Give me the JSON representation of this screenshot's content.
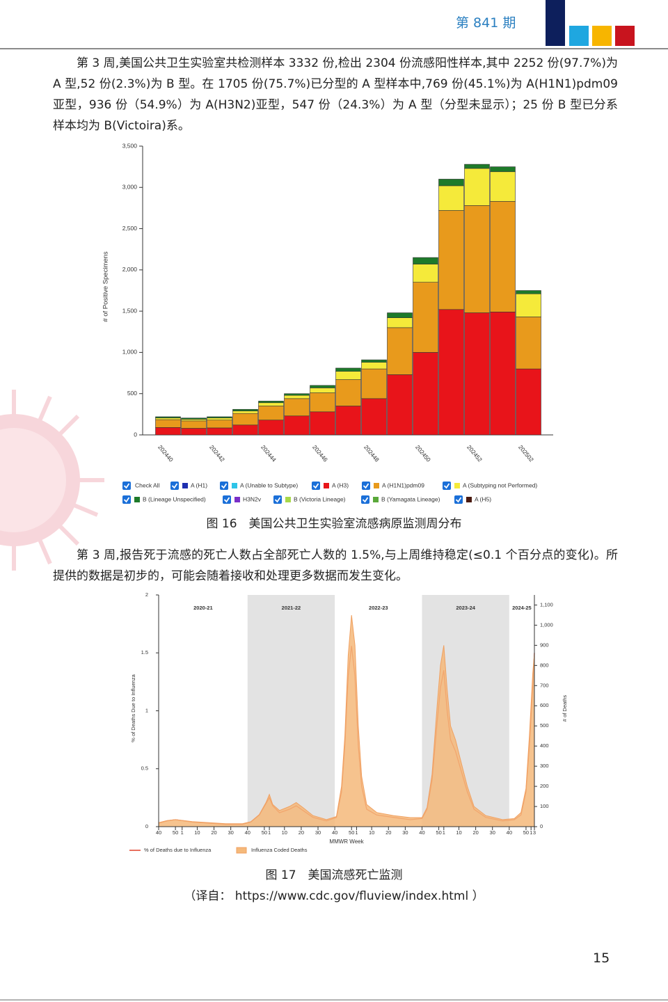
{
  "header": {
    "issue": "第 841 期"
  },
  "paragraphs": [
    "第 3 周,美国公共卫生实验室共检测样本 3332 份,检出 2304 份流感阳性样本,其中 2252 份(97.7%)为 A 型,52 份(2.3%)为 B 型。在 1705 份(75.7%)已分型的 A 型样本中,769 份(45.1%)为 A(H1N1)pdm09 亚型，936 份（54.9%）为 A(H3N2)亚型，547 份（24.3%）为 A 型（分型未显示）；25 份 B 型已分系样本均为 B(Victoira)系。",
    "第 3 周,报告死于流感的死亡人数占全部死亡人数的 1.5%,与上周维持稳定(≤0.1 个百分点的变化)。所提供的数据是初步的，可能会随着接收和处理更多数据而发生变化。"
  ],
  "captions": [
    "图 16　美国公共卫生实验室流感病原监测周分布",
    "图 17　美国流感死亡监测"
  ],
  "source": "（译自： https://www.cdc.gov/fluview/index.html ）",
  "page_number": "15",
  "chart_data": [
    {
      "type": "stacked_bar",
      "y_label": "# of Positive Specimens",
      "legend_check_all": "Check All",
      "categories": [
        "202440",
        null,
        "202442",
        null,
        "202444",
        null,
        "202446",
        null,
        "202448",
        null,
        "202450",
        null,
        "202452",
        null,
        "202502"
      ],
      "ylim": [
        0,
        3500
      ],
      "yticks": [
        0,
        500,
        {
          "value": 1000,
          "label": "1,000"
        },
        {
          "value": 1500,
          "label": "1,500"
        },
        {
          "value": 2000,
          "label": "2,000"
        },
        {
          "value": 2500,
          "label": "2,500"
        },
        {
          "value": 3000,
          "label": "3,000"
        },
        {
          "value": 3500,
          "label": "3,500"
        }
      ],
      "series": [
        {
          "name": "A (H1)",
          "color": "#1f2fb0",
          "values": [
            0,
            0,
            0,
            0,
            0,
            0,
            0,
            0,
            0,
            0,
            0,
            0,
            0,
            0,
            0
          ]
        },
        {
          "name": "A (Unable to Subtype)",
          "color": "#2ec4e8",
          "values": [
            0,
            0,
            0,
            0,
            0,
            0,
            0,
            0,
            0,
            0,
            0,
            0,
            0,
            0,
            0
          ]
        },
        {
          "name": "A (H3)",
          "color": "#e8141a",
          "values": [
            90,
            80,
            85,
            120,
            180,
            230,
            280,
            350,
            440,
            730,
            1000,
            1520,
            1480,
            1490,
            800
          ]
        },
        {
          "name": "A (H1N1)pdm09",
          "color": "#e89a1c",
          "values": [
            95,
            90,
            95,
            140,
            170,
            210,
            230,
            320,
            360,
            570,
            850,
            1200,
            1300,
            1340,
            630
          ]
        },
        {
          "name": "A (Subtyping not Performed)",
          "color": "#f5ea3a",
          "values": [
            20,
            20,
            25,
            30,
            40,
            40,
            60,
            100,
            80,
            120,
            220,
            300,
            450,
            360,
            280
          ]
        },
        {
          "name": "B (Lineage Unspecified)",
          "color": "#1e7a2a",
          "values": [
            15,
            15,
            15,
            20,
            20,
            20,
            30,
            40,
            30,
            60,
            80,
            80,
            50,
            60,
            40
          ]
        },
        {
          "name": "H3N2v",
          "color": "#7a2fc8",
          "values": [
            0,
            0,
            0,
            0,
            0,
            0,
            0,
            0,
            0,
            0,
            0,
            0,
            0,
            0,
            0
          ]
        },
        {
          "name": "B (Victoria Lineage)",
          "color": "#a8d84a",
          "values": [
            0,
            0,
            0,
            0,
            0,
            0,
            0,
            0,
            0,
            0,
            0,
            0,
            0,
            0,
            0
          ]
        },
        {
          "name": "B (Yamagata Lineage)",
          "color": "#5aa83a",
          "values": [
            0,
            0,
            0,
            0,
            0,
            0,
            0,
            0,
            0,
            0,
            0,
            0,
            0,
            0,
            0
          ]
        },
        {
          "name": "A (H5)",
          "color": "#4a1a10",
          "values": [
            0,
            0,
            0,
            0,
            0,
            0,
            0,
            0,
            0,
            0,
            0,
            0,
            0,
            0,
            0
          ]
        }
      ]
    },
    {
      "type": "dual_axis_area_line",
      "x_label": "MMWR Week",
      "y_label": "% of Deaths Due to Influenza",
      "y2_label": "# of Deaths",
      "x": [
        0,
        5,
        10,
        15,
        20,
        30,
        40,
        50,
        55,
        60,
        64,
        66,
        68,
        72,
        78,
        82,
        86,
        92,
        100,
        106,
        109,
        111,
        113,
        115,
        117,
        119,
        121,
        124,
        130,
        140,
        150,
        157,
        160,
        163,
        166,
        168,
        170,
        172,
        174,
        177,
        180,
        184,
        188,
        195,
        205,
        212,
        216,
        219,
        221,
        223,
        224
      ],
      "xlim": [
        0,
        224
      ],
      "xticks": [
        {
          "value": 0,
          "label": "40"
        },
        {
          "value": 10,
          "label": "50"
        },
        {
          "value": 14,
          "label": "1"
        },
        {
          "value": 23,
          "label": "10"
        },
        {
          "value": 33,
          "label": "20"
        },
        {
          "value": 43,
          "label": "30"
        },
        {
          "value": 53,
          "label": "40"
        },
        {
          "value": 63,
          "label": "50"
        },
        {
          "value": 66,
          "label": "1"
        },
        {
          "value": 75,
          "label": "10"
        },
        {
          "value": 85,
          "label": "20"
        },
        {
          "value": 95,
          "label": "30"
        },
        {
          "value": 105,
          "label": "40"
        },
        {
          "value": 115,
          "label": "50"
        },
        {
          "value": 118,
          "label": "1"
        },
        {
          "value": 127,
          "label": "10"
        },
        {
          "value": 137,
          "label": "20"
        },
        {
          "value": 147,
          "label": "30"
        },
        {
          "value": 157,
          "label": "40"
        },
        {
          "value": 167,
          "label": "50"
        },
        {
          "value": 170,
          "label": "1"
        },
        {
          "value": 179,
          "label": "10"
        },
        {
          "value": 189,
          "label": "20"
        },
        {
          "value": 199,
          "label": "30"
        },
        {
          "value": 209,
          "label": "40"
        },
        {
          "value": 219,
          "label": "50"
        },
        {
          "value": 222,
          "label": "1"
        },
        {
          "value": 224,
          "label": "3"
        }
      ],
      "ylim": [
        0,
        2
      ],
      "yticks": [
        0,
        0.5,
        1,
        1.5,
        2
      ],
      "y2lim": [
        0,
        1150
      ],
      "y2ticks": [
        0,
        100,
        200,
        300,
        400,
        500,
        600,
        700,
        800,
        900,
        {
          "value": 1000,
          "label": "1,000"
        },
        {
          "value": 1100,
          "label": "1,100"
        }
      ],
      "seasons": [
        {
          "label": "2020-21",
          "range": [
            0,
            53
          ],
          "shaded": false
        },
        {
          "label": "2021-22",
          "range": [
            53,
            105
          ],
          "shaded": true
        },
        {
          "label": "2022-23",
          "range": [
            105,
            157
          ],
          "shaded": false
        },
        {
          "label": "2023-24",
          "range": [
            157,
            209
          ],
          "shaded": true
        },
        {
          "label": "2024-25",
          "range": [
            209,
            224
          ],
          "shaded": false
        }
      ],
      "series": [
        {
          "name": "% of Deaths due to Influenza",
          "type": "line",
          "color": "#e0402a",
          "values": [
            0.03,
            0.05,
            0.06,
            0.05,
            0.04,
            0.03,
            0.02,
            0.02,
            0.04,
            0.1,
            0.2,
            0.25,
            0.18,
            0.12,
            0.15,
            0.18,
            0.14,
            0.08,
            0.05,
            0.08,
            0.3,
            0.7,
            1.3,
            1.56,
            1.3,
            0.7,
            0.35,
            0.15,
            0.1,
            0.08,
            0.06,
            0.07,
            0.15,
            0.4,
            0.9,
            1.2,
            1.35,
            1.0,
            0.75,
            0.65,
            0.5,
            0.3,
            0.15,
            0.08,
            0.05,
            0.06,
            0.1,
            0.3,
            0.7,
            1.2,
            1.5
          ]
        },
        {
          "name": "Influenza Coded Deaths",
          "type": "area",
          "axis": "y2",
          "color": "#f5b97a",
          "values": [
            20,
            30,
            35,
            30,
            25,
            20,
            15,
            15,
            25,
            60,
            120,
            160,
            110,
            80,
            100,
            120,
            95,
            55,
            35,
            50,
            200,
            450,
            850,
            1050,
            900,
            500,
            250,
            110,
            70,
            55,
            45,
            45,
            95,
            260,
            600,
            800,
            900,
            680,
            500,
            430,
            330,
            200,
            100,
            55,
            35,
            40,
            70,
            190,
            450,
            760,
            860
          ]
        }
      ]
    }
  ]
}
